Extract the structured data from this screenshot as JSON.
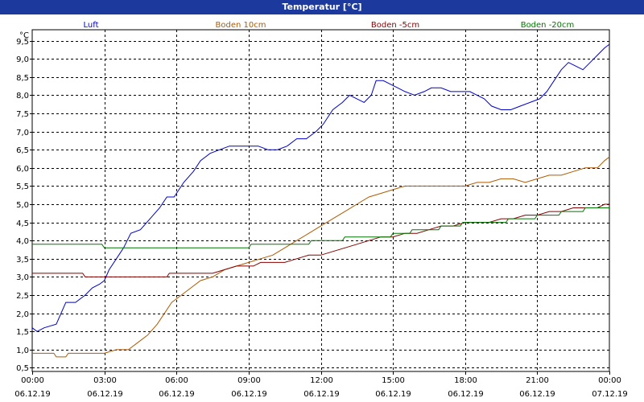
{
  "window": {
    "title": "Temperatur [°C]"
  },
  "chart_data": {
    "type": "line",
    "title": "Temperatur [°C]",
    "ylabel": "°C",
    "ylim": [
      0.4,
      9.8
    ],
    "yticks": [
      0.5,
      1.0,
      1.5,
      2.0,
      2.5,
      3.0,
      3.5,
      4.0,
      4.5,
      5.0,
      5.5,
      6.0,
      6.5,
      7.0,
      7.5,
      8.0,
      8.5,
      9.0,
      9.5
    ],
    "ytick_labels": [
      "0,5",
      "1,0",
      "1,5",
      "2,0",
      "2,5",
      "3,0",
      "3,5",
      "4,0",
      "4,5",
      "5,0",
      "5,5",
      "6,0",
      "6,5",
      "7,0",
      "7,5",
      "8,0",
      "8,5",
      "9,0",
      "9,5"
    ],
    "xlim": [
      0,
      24
    ],
    "xticks": [
      {
        "x": 0,
        "time": "00:00",
        "date": "06.12.19"
      },
      {
        "x": 3,
        "time": "03:00",
        "date": "06.12.19"
      },
      {
        "x": 6,
        "time": "06:00",
        "date": "06.12.19"
      },
      {
        "x": 9,
        "time": "09:00",
        "date": "06.12.19"
      },
      {
        "x": 12,
        "time": "12:00",
        "date": "06.12.19"
      },
      {
        "x": 15,
        "time": "15:00",
        "date": "06.12.19"
      },
      {
        "x": 18,
        "time": "18:00",
        "date": "06.12.19"
      },
      {
        "x": 21,
        "time": "21:00",
        "date": "06.12.19"
      },
      {
        "x": 24,
        "time": "00:00",
        "date": "07.12.19"
      }
    ],
    "grid": true,
    "legend_position": "top",
    "series": [
      {
        "name": "Luft",
        "color": "#0000cc",
        "points": [
          [
            0,
            1.6
          ],
          [
            0.2,
            1.5
          ],
          [
            0.5,
            1.6
          ],
          [
            1.0,
            1.7
          ],
          [
            1.4,
            2.3
          ],
          [
            1.8,
            2.3
          ],
          [
            2.2,
            2.5
          ],
          [
            2.5,
            2.7
          ],
          [
            2.8,
            2.8
          ],
          [
            3.0,
            2.9
          ],
          [
            3.2,
            3.2
          ],
          [
            3.5,
            3.5
          ],
          [
            3.8,
            3.8
          ],
          [
            4.1,
            4.2
          ],
          [
            4.5,
            4.3
          ],
          [
            4.9,
            4.6
          ],
          [
            5.3,
            4.9
          ],
          [
            5.6,
            5.2
          ],
          [
            5.9,
            5.2
          ],
          [
            6.3,
            5.6
          ],
          [
            6.7,
            5.9
          ],
          [
            7.0,
            6.2
          ],
          [
            7.4,
            6.4
          ],
          [
            7.8,
            6.5
          ],
          [
            8.2,
            6.6
          ],
          [
            8.6,
            6.6
          ],
          [
            9.0,
            6.6
          ],
          [
            9.4,
            6.6
          ],
          [
            9.8,
            6.5
          ],
          [
            10.2,
            6.5
          ],
          [
            10.6,
            6.6
          ],
          [
            11.0,
            6.8
          ],
          [
            11.4,
            6.8
          ],
          [
            11.8,
            7.0
          ],
          [
            12.1,
            7.2
          ],
          [
            12.5,
            7.6
          ],
          [
            12.9,
            7.8
          ],
          [
            13.2,
            8.0
          ],
          [
            13.5,
            7.9
          ],
          [
            13.8,
            7.8
          ],
          [
            14.1,
            8.0
          ],
          [
            14.3,
            8.4
          ],
          [
            14.6,
            8.4
          ],
          [
            14.9,
            8.3
          ],
          [
            15.2,
            8.2
          ],
          [
            15.5,
            8.1
          ],
          [
            15.9,
            8.0
          ],
          [
            16.3,
            8.1
          ],
          [
            16.6,
            8.2
          ],
          [
            17.0,
            8.2
          ],
          [
            17.4,
            8.1
          ],
          [
            17.8,
            8.1
          ],
          [
            18.2,
            8.1
          ],
          [
            18.5,
            8.0
          ],
          [
            18.8,
            7.9
          ],
          [
            19.1,
            7.7
          ],
          [
            19.5,
            7.6
          ],
          [
            19.9,
            7.6
          ],
          [
            20.3,
            7.7
          ],
          [
            20.7,
            7.8
          ],
          [
            21.1,
            7.9
          ],
          [
            21.4,
            8.1
          ],
          [
            21.7,
            8.4
          ],
          [
            22.0,
            8.7
          ],
          [
            22.3,
            8.9
          ],
          [
            22.6,
            8.8
          ],
          [
            22.9,
            8.7
          ],
          [
            23.2,
            8.9
          ],
          [
            23.5,
            9.1
          ],
          [
            23.8,
            9.3
          ],
          [
            24.0,
            9.4
          ]
        ]
      },
      {
        "name": "Boden 10cm",
        "color": "#b05a00",
        "points": [
          [
            0,
            0.9
          ],
          [
            0.9,
            0.9
          ],
          [
            1.0,
            0.8
          ],
          [
            1.4,
            0.8
          ],
          [
            1.5,
            0.9
          ],
          [
            3.0,
            0.9
          ],
          [
            3.5,
            1.0
          ],
          [
            4.0,
            1.0
          ],
          [
            4.4,
            1.2
          ],
          [
            4.8,
            1.4
          ],
          [
            5.2,
            1.7
          ],
          [
            5.5,
            2.0
          ],
          [
            5.8,
            2.3
          ],
          [
            6.2,
            2.5
          ],
          [
            6.6,
            2.7
          ],
          [
            7.0,
            2.9
          ],
          [
            7.5,
            3.0
          ],
          [
            8.0,
            3.2
          ],
          [
            8.5,
            3.3
          ],
          [
            9.0,
            3.4
          ],
          [
            9.5,
            3.5
          ],
          [
            10.0,
            3.6
          ],
          [
            10.5,
            3.8
          ],
          [
            11.0,
            4.0
          ],
          [
            11.5,
            4.2
          ],
          [
            12.0,
            4.4
          ],
          [
            12.5,
            4.6
          ],
          [
            13.0,
            4.8
          ],
          [
            13.5,
            5.0
          ],
          [
            14.0,
            5.2
          ],
          [
            14.5,
            5.3
          ],
          [
            15.0,
            5.4
          ],
          [
            15.5,
            5.5
          ],
          [
            16.0,
            5.5
          ],
          [
            16.5,
            5.5
          ],
          [
            17.0,
            5.5
          ],
          [
            17.5,
            5.5
          ],
          [
            18.0,
            5.5
          ],
          [
            18.5,
            5.6
          ],
          [
            19.0,
            5.6
          ],
          [
            19.5,
            5.7
          ],
          [
            20.0,
            5.7
          ],
          [
            20.5,
            5.6
          ],
          [
            21.0,
            5.7
          ],
          [
            21.5,
            5.8
          ],
          [
            22.0,
            5.8
          ],
          [
            22.5,
            5.9
          ],
          [
            23.0,
            6.0
          ],
          [
            23.5,
            6.0
          ],
          [
            23.8,
            6.2
          ],
          [
            24.0,
            6.3
          ]
        ]
      },
      {
        "name": "Boden -5cm",
        "color": "#880000",
        "points": [
          [
            0,
            3.1
          ],
          [
            2.1,
            3.1
          ],
          [
            2.2,
            3.0
          ],
          [
            5.6,
            3.0
          ],
          [
            5.7,
            3.1
          ],
          [
            7.5,
            3.1
          ],
          [
            8.0,
            3.2
          ],
          [
            8.5,
            3.3
          ],
          [
            9.2,
            3.3
          ],
          [
            9.5,
            3.4
          ],
          [
            10.5,
            3.4
          ],
          [
            11.0,
            3.5
          ],
          [
            11.5,
            3.6
          ],
          [
            12.0,
            3.6
          ],
          [
            12.5,
            3.7
          ],
          [
            13.0,
            3.8
          ],
          [
            13.5,
            3.9
          ],
          [
            14.0,
            4.0
          ],
          [
            14.5,
            4.1
          ],
          [
            15.0,
            4.1
          ],
          [
            15.5,
            4.2
          ],
          [
            16.0,
            4.2
          ],
          [
            16.5,
            4.3
          ],
          [
            17.0,
            4.4
          ],
          [
            17.5,
            4.4
          ],
          [
            18.0,
            4.5
          ],
          [
            18.5,
            4.5
          ],
          [
            19.0,
            4.5
          ],
          [
            19.5,
            4.6
          ],
          [
            20.0,
            4.6
          ],
          [
            20.5,
            4.7
          ],
          [
            21.0,
            4.7
          ],
          [
            21.5,
            4.8
          ],
          [
            22.0,
            4.8
          ],
          [
            22.5,
            4.9
          ],
          [
            23.0,
            4.9
          ],
          [
            23.5,
            4.9
          ],
          [
            23.8,
            5.0
          ],
          [
            24.0,
            5.0
          ]
        ]
      },
      {
        "name": "Boden -20cm",
        "color": "#007700",
        "points": [
          [
            0,
            3.9
          ],
          [
            2.9,
            3.9
          ],
          [
            3.0,
            3.8
          ],
          [
            9.0,
            3.8
          ],
          [
            9.1,
            3.9
          ],
          [
            11.5,
            3.9
          ],
          [
            11.6,
            4.0
          ],
          [
            12.9,
            4.0
          ],
          [
            13.0,
            4.1
          ],
          [
            14.9,
            4.1
          ],
          [
            15.0,
            4.2
          ],
          [
            15.7,
            4.2
          ],
          [
            15.8,
            4.3
          ],
          [
            16.9,
            4.3
          ],
          [
            17.0,
            4.4
          ],
          [
            17.8,
            4.4
          ],
          [
            17.9,
            4.5
          ],
          [
            19.7,
            4.5
          ],
          [
            19.8,
            4.6
          ],
          [
            20.9,
            4.6
          ],
          [
            21.0,
            4.7
          ],
          [
            21.9,
            4.7
          ],
          [
            22.0,
            4.8
          ],
          [
            22.9,
            4.8
          ],
          [
            23.0,
            4.9
          ],
          [
            24.0,
            4.9
          ]
        ]
      }
    ]
  }
}
